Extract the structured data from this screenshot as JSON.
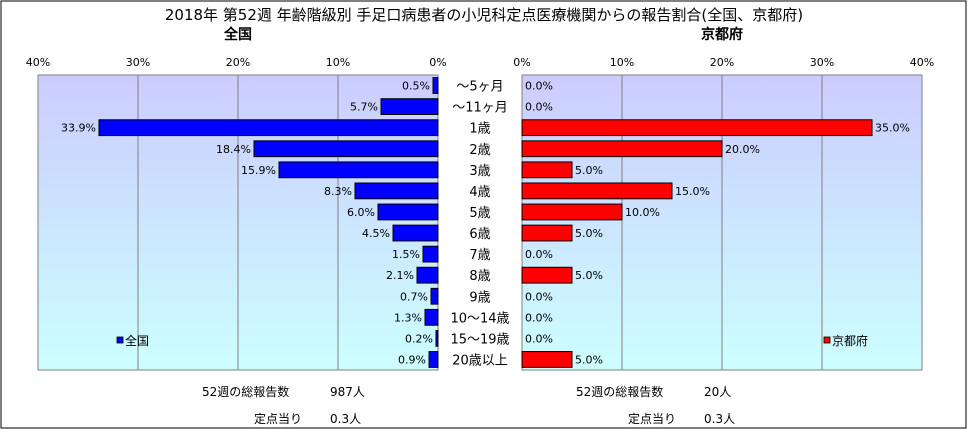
{
  "title": "2018年 第52週 年齢階級別 手足口病患者の小児科定点医療機関からの報告割合(全国、京都府)",
  "colors": {
    "national_bar": "#0000ff",
    "kyoto_bar": "#ff0000",
    "bar_border": "#000000",
    "plot_top": "#ccccff",
    "plot_bottom": "#ccffff"
  },
  "chart_data": [
    {
      "type": "bar",
      "orientation": "horizontal",
      "direction": "right-to-left",
      "subtitle": "全国",
      "categories": [
        "～5ヶ月",
        "～11ヶ月",
        "1歳",
        "2歳",
        "3歳",
        "4歳",
        "5歳",
        "6歳",
        "7歳",
        "8歳",
        "9歳",
        "10～14歳",
        "15～19歳",
        "20歳以上"
      ],
      "values": [
        0.5,
        5.7,
        33.9,
        18.4,
        15.9,
        8.3,
        6.0,
        4.5,
        1.5,
        2.1,
        0.7,
        1.3,
        0.2,
        0.9
      ],
      "value_labels": [
        "0.5%",
        "5.7%",
        "33.9%",
        "18.4%",
        "15.9%",
        "8.3%",
        "6.0%",
        "4.5%",
        "1.5%",
        "2.1%",
        "0.7%",
        "1.3%",
        "0.2%",
        "0.9%"
      ],
      "xlim": [
        0,
        40
      ],
      "ticks": [
        "0%",
        "10%",
        "20%",
        "30%",
        "40%"
      ],
      "grid": true,
      "legend": {
        "label": "全国",
        "placement": "bottom-left"
      }
    },
    {
      "type": "bar",
      "orientation": "horizontal",
      "direction": "left-to-right",
      "subtitle": "京都府",
      "categories": [
        "～5ヶ月",
        "～11ヶ月",
        "1歳",
        "2歳",
        "3歳",
        "4歳",
        "5歳",
        "6歳",
        "7歳",
        "8歳",
        "9歳",
        "10～14歳",
        "15～19歳",
        "20歳以上"
      ],
      "values": [
        0.0,
        0.0,
        35.0,
        20.0,
        5.0,
        15.0,
        10.0,
        5.0,
        0.0,
        5.0,
        0.0,
        0.0,
        0.0,
        5.0
      ],
      "value_labels": [
        "0.0%",
        "0.0%",
        "35.0%",
        "20.0%",
        "5.0%",
        "15.0%",
        "10.0%",
        "5.0%",
        "0.0%",
        "5.0%",
        "0.0%",
        "0.0%",
        "0.0%",
        "5.0%"
      ],
      "xlim": [
        0,
        40
      ],
      "ticks": [
        "0%",
        "10%",
        "20%",
        "30%",
        "40%"
      ],
      "grid": true,
      "legend": {
        "label": "京都府",
        "placement": "bottom-right"
      }
    }
  ],
  "footer": {
    "national_total_label": "52週の総報告数",
    "national_total_value": "987人",
    "national_per_label": "定点当り",
    "national_per_value": "0.3人",
    "kyoto_total_label": "52週の総報告数",
    "kyoto_total_value": "20人",
    "kyoto_per_label": "定点当り",
    "kyoto_per_value": "0.3人"
  }
}
